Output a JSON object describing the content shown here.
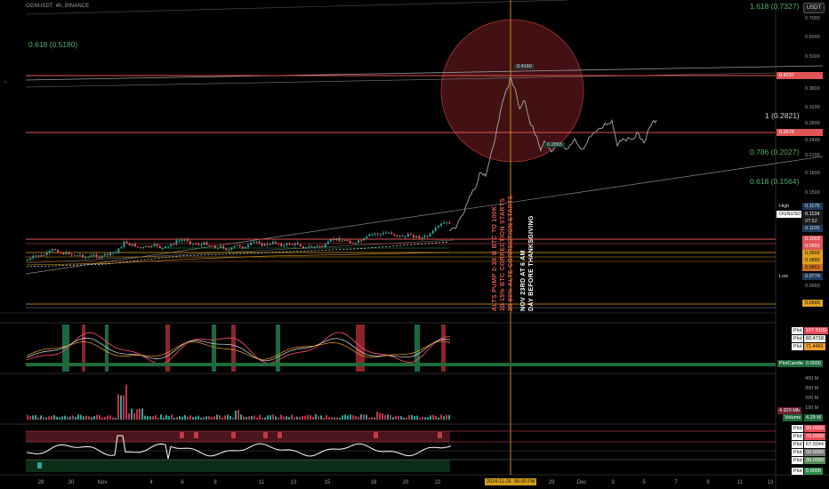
{
  "header": {
    "symbol_line": "OGNUSDT, 4h, BINANCE"
  },
  "price_axis": {
    "currency_button": "USDT",
    "ticks": [
      "0.7000",
      "0.6000",
      "0.5000",
      "0.4500",
      "0.3800",
      "0.3200",
      "0.2800",
      "0.2400",
      "0.2100",
      "0.1800",
      "0.1500",
      "0.1175",
      "0.1134",
      "07:52",
      "0.1105",
      "0.1003",
      "0.0991",
      "0.0909",
      "0.0880",
      "0.0861",
      "0.0774",
      "0.0660",
      "0.0565"
    ],
    "labels": {
      "red_top": "0.4237",
      "red_mid": "0.2675",
      "high_label": "High",
      "high_value": "0.1175",
      "symbol_tag": "OGNUSDT",
      "last_price": "0.1134",
      "countdown": "07:52",
      "bid": "0.1105",
      "level_a": "0.1003",
      "level_b": "0.0991",
      "level_c": "0.0909",
      "level_d": "0.0880",
      "level_e": "0.0861",
      "low_label": "Low",
      "low_value": "0.0774",
      "level_f": "0.0660",
      "level_g": "0.0565"
    }
  },
  "fibs": {
    "f1618_top": "1.618 (0.7327)",
    "f0618_left": "0.618 (0.5180)",
    "f1": "1 (0.2821)",
    "f0786": "0.786 (0.2027)",
    "f0618": "0.618 (0.1564)"
  },
  "annotations": {
    "peak_price": "0.4160",
    "dip_price": "0.2883",
    "text_left": [
      "ALTS PUMP 2-3X B BTC TO 100K",
      "10-15% BTC CORRECTION STARTS",
      "30-50% ALTS CORRECTION STARTS"
    ],
    "text_right": [
      "NOV 23RD AT 6 AM",
      "DAY BEFORE THANKSGIVING"
    ]
  },
  "pane2": {
    "plots": [
      {
        "label": "Plot",
        "value": "107.5109",
        "color": "#e74c5a"
      },
      {
        "label": "Plot",
        "value": "83.4718",
        "color": "#d0d0d0"
      },
      {
        "label": "Plot",
        "value": "71.4481",
        "color": "#f0a030"
      }
    ],
    "candle_tag": "PlotCandle",
    "candle_value": "0.0000"
  },
  "pane3": {
    "ticks": [
      "400 M",
      "300 M",
      "200 M",
      "100 M"
    ],
    "volume_label": "Volume",
    "volume_value": "4.29 M",
    "small": "4.929 Mb"
  },
  "pane4": {
    "plots": [
      {
        "label": "Plot",
        "value": "90.0000",
        "color": "#e74c5a"
      },
      {
        "label": "Plot",
        "value": "70.0000",
        "color": "#e74c5a"
      },
      {
        "label": "Plot",
        "value": "67.0244",
        "color": "#ffffff"
      },
      {
        "label": "Plot",
        "value": "50.0000",
        "color": "#777"
      },
      {
        "label": "Plot",
        "value": "30.0000",
        "color": "#5a8a5a"
      },
      {
        "label": "Plot",
        "value": "0.0000",
        "color": "#2a8a4a"
      }
    ]
  },
  "time_axis": {
    "labels": [
      "28",
      "30",
      "Nov",
      "4",
      "6",
      "8",
      "11",
      "13",
      "15",
      "18",
      "20",
      "22",
      "29",
      "Dec",
      "3",
      "5",
      "7",
      "9",
      "11",
      "13"
    ],
    "crosshair_date": "2024-11-26",
    "crosshair_time": "06:00 PM"
  }
}
